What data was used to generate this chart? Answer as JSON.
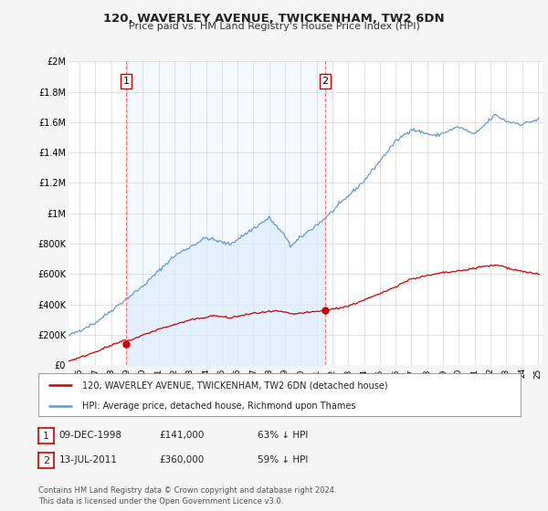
{
  "title": "120, WAVERLEY AVENUE, TWICKENHAM, TW2 6DN",
  "subtitle": "Price paid vs. HM Land Registry's House Price Index (HPI)",
  "legend_line1": "120, WAVERLEY AVENUE, TWICKENHAM, TW2 6DN (detached house)",
  "legend_line2": "HPI: Average price, detached house, Richmond upon Thames",
  "footnote": "Contains HM Land Registry data © Crown copyright and database right 2024.\nThis data is licensed under the Open Government Licence v3.0.",
  "sale1_label": "1",
  "sale1_date": "09-DEC-1998",
  "sale1_price": "£141,000",
  "sale1_hpi": "63% ↓ HPI",
  "sale2_label": "2",
  "sale2_date": "13-JUL-2011",
  "sale2_price": "£360,000",
  "sale2_hpi": "59% ↓ HPI",
  "house_color": "#cc0000",
  "hpi_color": "#6699cc",
  "hpi_fill_color": "#ddeeff",
  "background_color": "#f5f5f5",
  "plot_bg_color": "#ffffff",
  "ylim": [
    0,
    2000000
  ],
  "yticks": [
    0,
    200000,
    400000,
    600000,
    800000,
    1000000,
    1200000,
    1400000,
    1600000,
    1800000,
    2000000
  ],
  "ytick_labels": [
    "£0",
    "£200K",
    "£400K",
    "£600K",
    "£800K",
    "£1M",
    "£1.2M",
    "£1.4M",
    "£1.6M",
    "£1.8M",
    "£2M"
  ],
  "sale1_x": 1998.94,
  "sale1_y": 141000,
  "sale2_x": 2011.54,
  "sale2_y": 360000,
  "vline1_x": 1998.94,
  "vline2_x": 2011.54,
  "xlim_left": 1995.5,
  "xlim_right": 2025.2
}
